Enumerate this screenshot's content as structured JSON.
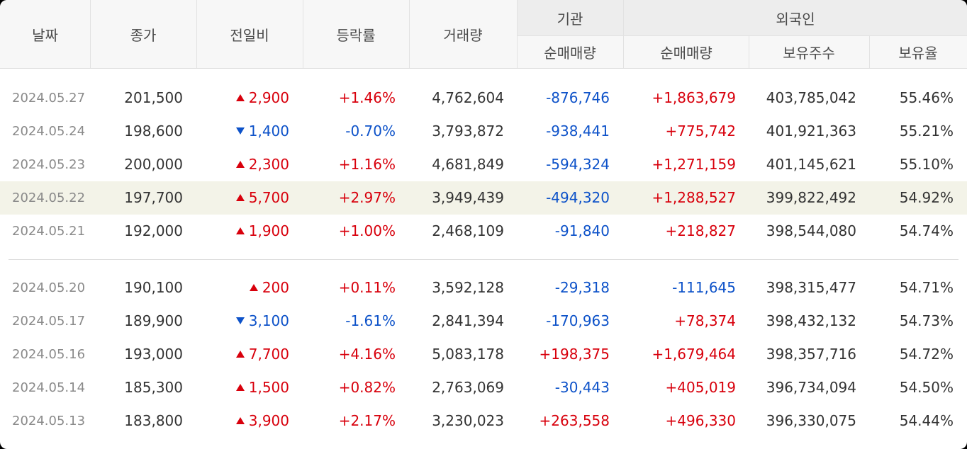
{
  "header": {
    "date": "날짜",
    "close": "종가",
    "change": "전일비",
    "rate": "등락률",
    "volume": "거래량",
    "institution": "기관",
    "inst_net": "순매매량",
    "foreign": "외국인",
    "foreign_net": "순매매량",
    "foreign_hold": "보유주수",
    "foreign_ratio": "보유율"
  },
  "colors": {
    "up": "#d8000c",
    "down": "#0d52c9",
    "highlight": "#f3f3e8"
  },
  "groups": [
    {
      "rows": [
        {
          "date": "2024.05.27",
          "close": "201,500",
          "dir": "up",
          "change": "2,900",
          "rate": "+1.46%",
          "volume": "4,762,604",
          "inst": "-876,746",
          "foreign": "+1,863,679",
          "hold": "403,785,042",
          "ratio": "55.46%"
        },
        {
          "date": "2024.05.24",
          "close": "198,600",
          "dir": "down",
          "change": "1,400",
          "rate": "-0.70%",
          "volume": "3,793,872",
          "inst": "-938,441",
          "foreign": "+775,742",
          "hold": "401,921,363",
          "ratio": "55.21%"
        },
        {
          "date": "2024.05.23",
          "close": "200,000",
          "dir": "up",
          "change": "2,300",
          "rate": "+1.16%",
          "volume": "4,681,849",
          "inst": "-594,324",
          "foreign": "+1,271,159",
          "hold": "401,145,621",
          "ratio": "55.10%"
        },
        {
          "date": "2024.05.22",
          "close": "197,700",
          "dir": "up",
          "change": "5,700",
          "rate": "+2.97%",
          "volume": "3,949,439",
          "inst": "-494,320",
          "foreign": "+1,288,527",
          "hold": "399,822,492",
          "ratio": "54.92%",
          "highlight": true
        },
        {
          "date": "2024.05.21",
          "close": "192,000",
          "dir": "up",
          "change": "1,900",
          "rate": "+1.00%",
          "volume": "2,468,109",
          "inst": "-91,840",
          "foreign": "+218,827",
          "hold": "398,544,080",
          "ratio": "54.74%"
        }
      ]
    },
    {
      "rows": [
        {
          "date": "2024.05.20",
          "close": "190,100",
          "dir": "up",
          "change": "200",
          "rate": "+0.11%",
          "volume": "3,592,128",
          "inst": "-29,318",
          "foreign": "-111,645",
          "hold": "398,315,477",
          "ratio": "54.71%"
        },
        {
          "date": "2024.05.17",
          "close": "189,900",
          "dir": "down",
          "change": "3,100",
          "rate": "-1.61%",
          "volume": "2,841,394",
          "inst": "-170,963",
          "foreign": "+78,374",
          "hold": "398,432,132",
          "ratio": "54.73%"
        },
        {
          "date": "2024.05.16",
          "close": "193,000",
          "dir": "up",
          "change": "7,700",
          "rate": "+4.16%",
          "volume": "5,083,178",
          "inst": "+198,375",
          "foreign": "+1,679,464",
          "hold": "398,357,716",
          "ratio": "54.72%"
        },
        {
          "date": "2024.05.14",
          "close": "185,300",
          "dir": "up",
          "change": "1,500",
          "rate": "+0.82%",
          "volume": "2,763,069",
          "inst": "-30,443",
          "foreign": "+405,019",
          "hold": "396,734,094",
          "ratio": "54.50%"
        },
        {
          "date": "2024.05.13",
          "close": "183,800",
          "dir": "up",
          "change": "3,900",
          "rate": "+2.17%",
          "volume": "3,230,023",
          "inst": "+263,558",
          "foreign": "+496,330",
          "hold": "396,330,075",
          "ratio": "54.44%"
        }
      ]
    }
  ]
}
